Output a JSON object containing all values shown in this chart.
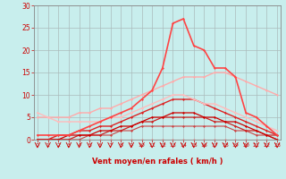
{
  "x": [
    0,
    1,
    2,
    3,
    4,
    5,
    6,
    7,
    8,
    9,
    10,
    11,
    12,
    13,
    14,
    15,
    16,
    17,
    18,
    19,
    20,
    21,
    22,
    23
  ],
  "lines": [
    {
      "y": [
        0,
        0,
        0,
        0,
        0,
        0,
        0,
        0,
        0,
        0,
        0,
        0,
        0,
        0,
        0,
        0,
        0,
        0,
        0,
        0,
        0,
        0,
        0,
        0
      ],
      "color": "#ff8888",
      "lw": 0.8,
      "marker": "D",
      "ms": 1.5
    },
    {
      "y": [
        0,
        0,
        0,
        0,
        0,
        1,
        1,
        1,
        2,
        2,
        3,
        3,
        3,
        3,
        3,
        3,
        3,
        3,
        3,
        2,
        2,
        1,
        1,
        0
      ],
      "color": "#cc4444",
      "lw": 0.8,
      "marker": "D",
      "ms": 1.5
    },
    {
      "y": [
        0,
        0,
        0,
        0,
        1,
        1,
        1,
        2,
        2,
        3,
        4,
        4,
        5,
        5,
        5,
        5,
        5,
        4,
        4,
        3,
        2,
        2,
        1,
        1
      ],
      "color": "#cc2222",
      "lw": 0.9,
      "marker": "D",
      "ms": 1.5
    },
    {
      "y": [
        0,
        0,
        0,
        1,
        1,
        1,
        2,
        2,
        3,
        3,
        4,
        5,
        5,
        6,
        6,
        6,
        5,
        5,
        4,
        4,
        3,
        2,
        1,
        0
      ],
      "color": "#cc0000",
      "lw": 0.9,
      "marker": "D",
      "ms": 1.5
    },
    {
      "y": [
        0,
        0,
        1,
        1,
        2,
        2,
        3,
        3,
        4,
        5,
        6,
        7,
        8,
        9,
        9,
        9,
        8,
        7,
        6,
        5,
        4,
        3,
        2,
        1
      ],
      "color": "#dd2222",
      "lw": 1.0,
      "marker": "D",
      "ms": 1.5
    },
    {
      "y": [
        5,
        5,
        5,
        5,
        6,
        6,
        7,
        7,
        8,
        9,
        10,
        11,
        12,
        13,
        14,
        14,
        14,
        15,
        15,
        14,
        13,
        12,
        11,
        10
      ],
      "color": "#ffaaaa",
      "lw": 1.0,
      "marker": "D",
      "ms": 1.5
    },
    {
      "y": [
        6,
        5,
        4,
        4,
        4,
        4,
        4,
        5,
        5,
        6,
        7,
        8,
        9,
        10,
        10,
        9,
        8,
        8,
        7,
        6,
        5,
        4,
        3,
        2
      ],
      "color": "#ffbbbb",
      "lw": 1.0,
      "marker": "D",
      "ms": 1.5
    },
    {
      "y": [
        1,
        1,
        1,
        1,
        2,
        3,
        4,
        5,
        6,
        7,
        9,
        11,
        16,
        26,
        27,
        21,
        20,
        16,
        16,
        14,
        6,
        5,
        3,
        1
      ],
      "color": "#ff4444",
      "lw": 1.2,
      "marker": "D",
      "ms": 1.5
    }
  ],
  "xlim": [
    -0.3,
    23.3
  ],
  "ylim": [
    0,
    30
  ],
  "yticks": [
    0,
    5,
    10,
    15,
    20,
    25,
    30
  ],
  "xticks": [
    0,
    1,
    2,
    3,
    4,
    5,
    6,
    7,
    8,
    9,
    10,
    11,
    12,
    13,
    14,
    15,
    16,
    17,
    18,
    19,
    20,
    21,
    22,
    23
  ],
  "xlabel": "Vent moyen/en rafales ( km/h )",
  "bg_color": "#c8eeed",
  "grid_color": "#aabbbb",
  "tick_color": "#cc0000",
  "label_color": "#cc0000",
  "axis_color": "#888888",
  "arrow_color": "#cc0000"
}
